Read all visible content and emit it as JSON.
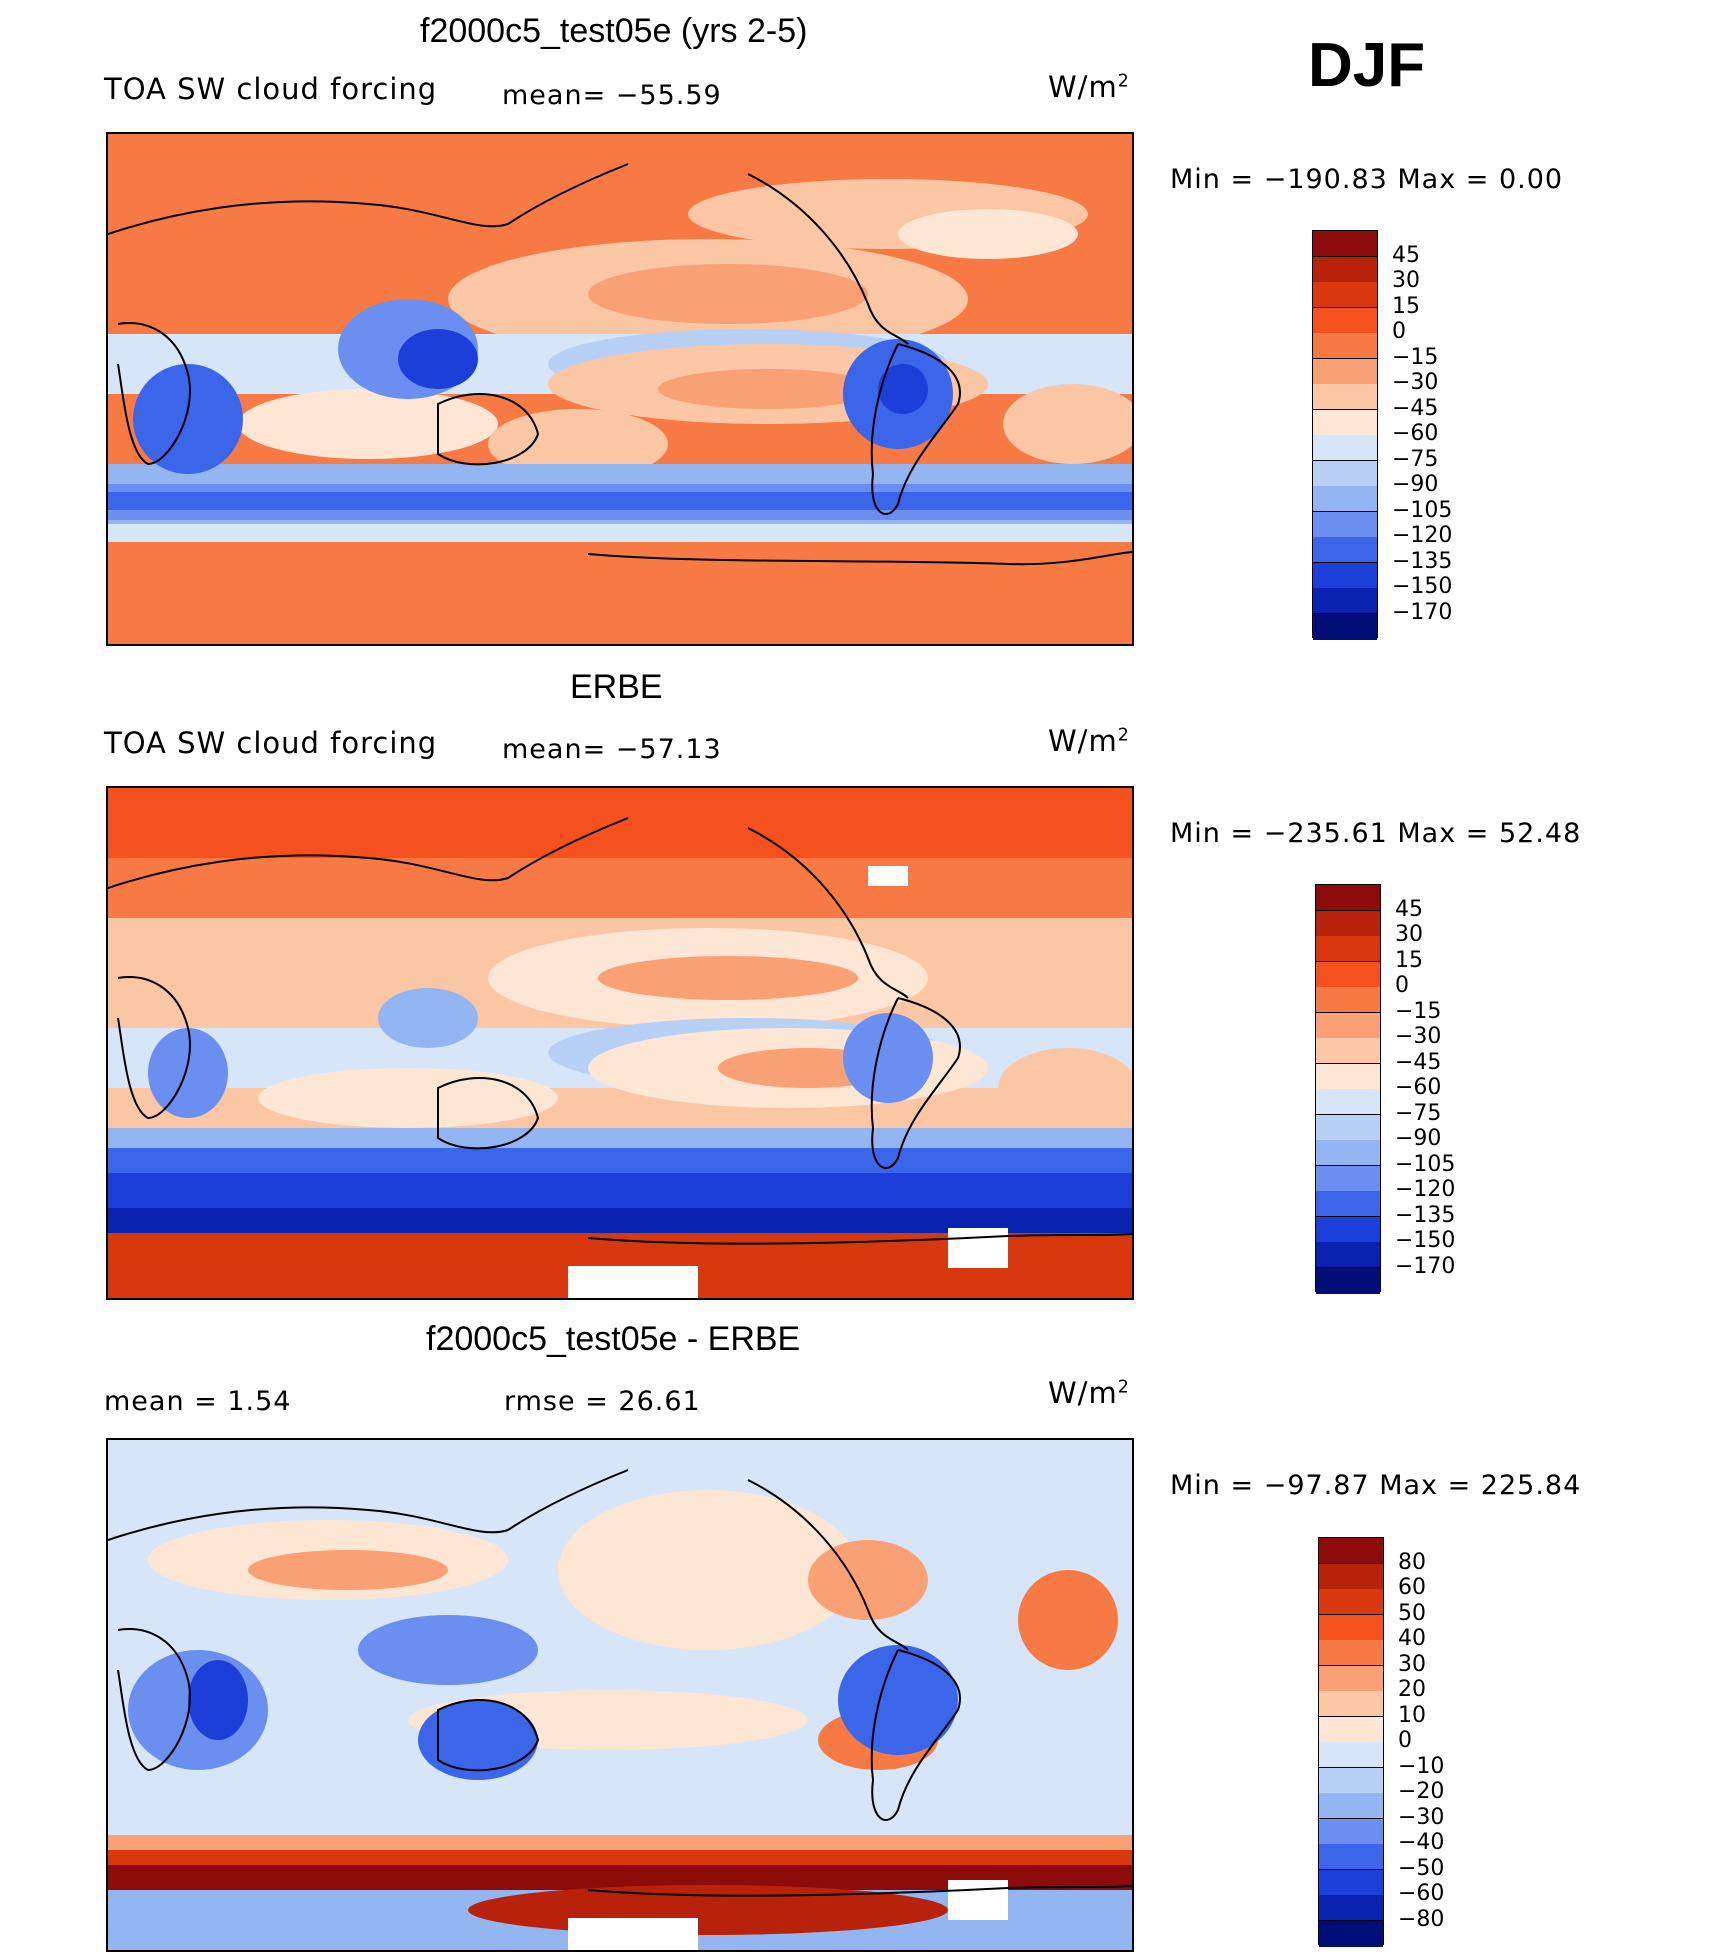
{
  "season": "DJF",
  "panels": [
    {
      "title": "f2000c5_test05e (yrs 2-5)",
      "left_label": "TOA SW cloud forcing",
      "mid_label": "mean=  −55.59",
      "units_base": "W/m",
      "units_exp": "2",
      "minmax": "Min  =  −190.83  Max  =     0.00"
    },
    {
      "title": "ERBE",
      "left_label": "TOA SW cloud forcing",
      "mid_label": "mean=  −57.13",
      "units_base": "W/m",
      "units_exp": "2",
      "minmax": "Min  =  −235.61  Max  =   52.48"
    },
    {
      "title": "f2000c5_test05e - ERBE",
      "left_label": "mean  =     1.54",
      "mid_label": "rmse  =    26.61",
      "units_base": "W/m",
      "units_exp": "2",
      "minmax": "Min  =  −97.87  Max  =  225.84"
    }
  ],
  "chart_data": [
    {
      "type": "heatmap",
      "title": "f2000c5_test05e (yrs 2-5)",
      "variable": "TOA SW cloud forcing",
      "units": "W/m2",
      "mean": -55.59,
      "min": -190.83,
      "max": 0.0,
      "colorbar_levels": [
        "45",
        "30",
        "15",
        "0",
        "−15",
        "−30",
        "−45",
        "−60",
        "−75",
        "−90",
        "−105",
        "−120",
        "−135",
        "−150",
        "−170"
      ],
      "colorbar_colors": [
        "#8e0b0b",
        "#b8220b",
        "#d9380f",
        "#f5511f",
        "#f77a45",
        "#f9a074",
        "#fbc6a4",
        "#fde6d3",
        "#d6e6f8",
        "#b8d0f5",
        "#93b5f2",
        "#6a8ff0",
        "#3c66ea",
        "#1b3fd8",
        "#0a22b0",
        "#020e78"
      ]
    },
    {
      "type": "heatmap",
      "title": "ERBE",
      "variable": "TOA SW cloud forcing",
      "units": "W/m2",
      "mean": -57.13,
      "min": -235.61,
      "max": 52.48,
      "colorbar_levels": [
        "45",
        "30",
        "15",
        "0",
        "−15",
        "−30",
        "−45",
        "−60",
        "−75",
        "−90",
        "−105",
        "−120",
        "−135",
        "−150",
        "−170"
      ],
      "colorbar_colors": [
        "#8e0b0b",
        "#b8220b",
        "#d9380f",
        "#f5511f",
        "#f77a45",
        "#f9a074",
        "#fbc6a4",
        "#fde6d3",
        "#d6e6f8",
        "#b8d0f5",
        "#93b5f2",
        "#6a8ff0",
        "#3c66ea",
        "#1b3fd8",
        "#0a22b0",
        "#020e78"
      ]
    },
    {
      "type": "heatmap",
      "title": "f2000c5_test05e - ERBE",
      "units": "W/m2",
      "mean": 1.54,
      "rmse": 26.61,
      "min": -97.87,
      "max": 225.84,
      "colorbar_levels": [
        "80",
        "60",
        "50",
        "40",
        "30",
        "20",
        "10",
        "0",
        "−10",
        "−20",
        "−30",
        "−40",
        "−50",
        "−60",
        "−80"
      ],
      "colorbar_colors": [
        "#8e0b0b",
        "#b8220b",
        "#d9380f",
        "#f5511f",
        "#f77a45",
        "#f9a074",
        "#fbc6a4",
        "#fde6d3",
        "#d6e6f8",
        "#b8d0f5",
        "#93b5f2",
        "#6a8ff0",
        "#3c66ea",
        "#1b3fd8",
        "#0a22b0",
        "#020e78"
      ]
    }
  ]
}
